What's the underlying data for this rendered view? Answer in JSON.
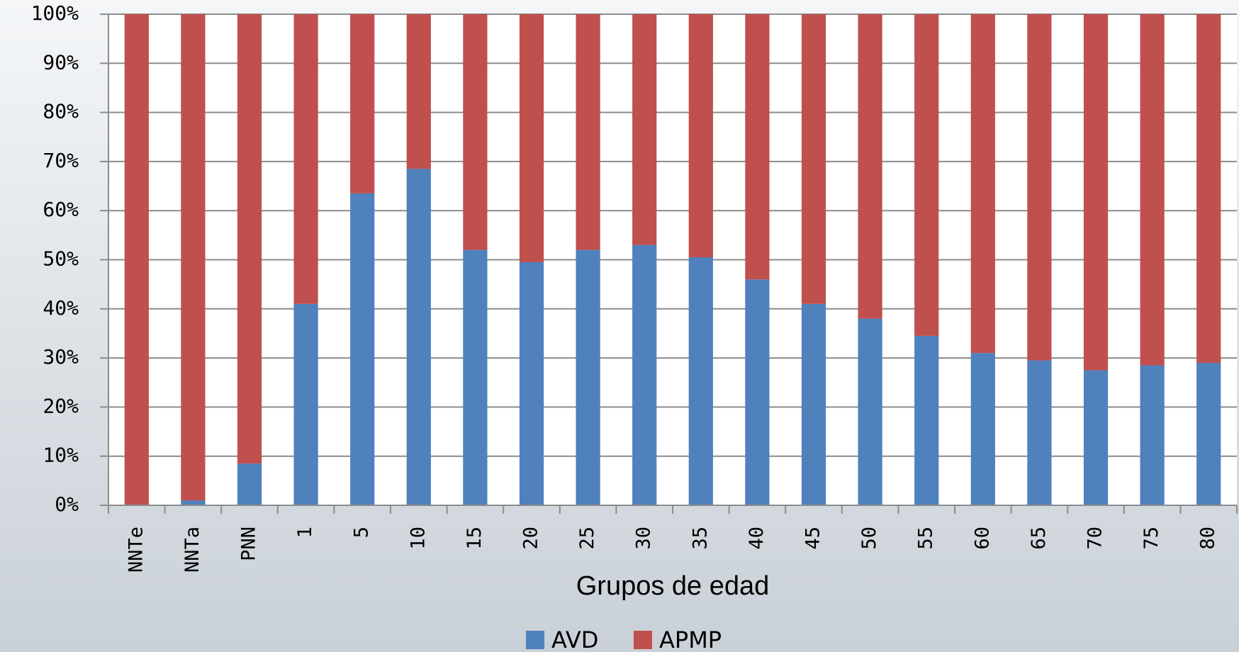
{
  "chart_data": {
    "type": "stacked_bar",
    "x_label": "Grupos de edad",
    "categories": [
      "NNTe",
      "NNTa",
      "PNN",
      "1",
      "5",
      "10",
      "15",
      "20",
      "25",
      "30",
      "35",
      "40",
      "45",
      "50",
      "55",
      "60",
      "65",
      "70",
      "75",
      "80"
    ],
    "series": [
      {
        "name": "AVD",
        "color": "#4f81bd",
        "values": [
          0,
          1,
          8.5,
          41,
          63.5,
          68.5,
          52,
          49.5,
          52,
          53,
          50.5,
          46,
          41,
          38,
          34.5,
          31,
          29.5,
          27.5,
          28.5,
          29
        ]
      },
      {
        "name": "APMP",
        "color": "#c0504d",
        "values": [
          100,
          99,
          91.5,
          59,
          36.5,
          31.5,
          48,
          50.5,
          48,
          47,
          49.5,
          54,
          59,
          62,
          65.5,
          69,
          70.5,
          72.5,
          71.5,
          71
        ]
      }
    ],
    "ylim": [
      0,
      100
    ],
    "yticks": [
      {
        "value": 0,
        "label": "0%"
      },
      {
        "value": 10,
        "label": "10%"
      },
      {
        "value": 20,
        "label": "20%"
      },
      {
        "value": 30,
        "label": "30%"
      },
      {
        "value": 40,
        "label": "40%"
      },
      {
        "value": 50,
        "label": "50%"
      },
      {
        "value": 60,
        "label": "60%"
      },
      {
        "value": 70,
        "label": "70%"
      },
      {
        "value": 80,
        "label": "80%"
      },
      {
        "value": 90,
        "label": "90%"
      },
      {
        "value": 100,
        "label": "100%"
      }
    ],
    "grid": true,
    "legend": "bottom"
  }
}
